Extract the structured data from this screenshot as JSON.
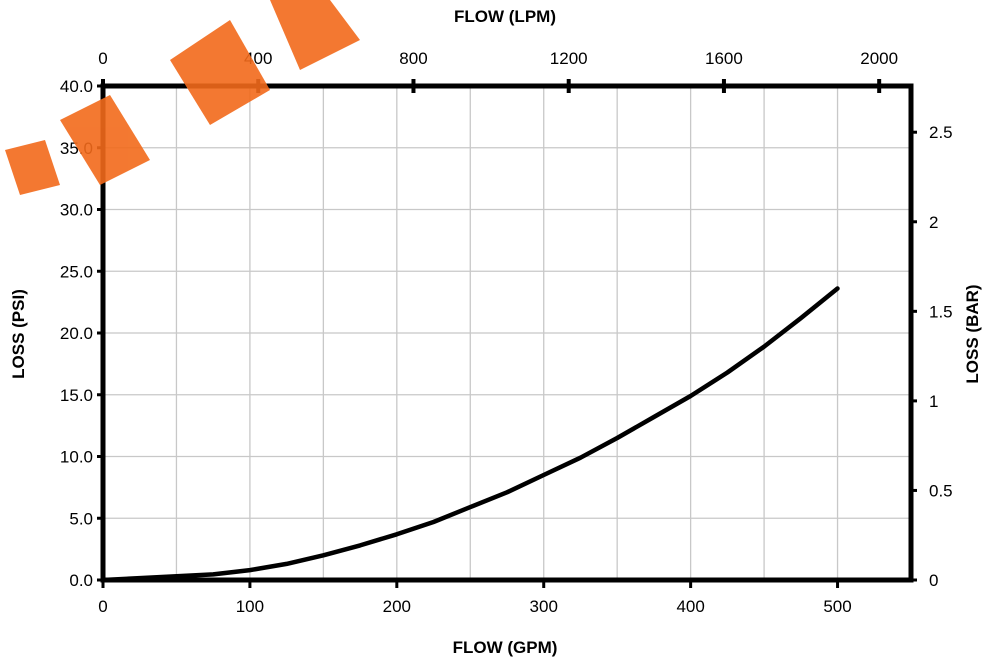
{
  "chart_data": {
    "type": "line",
    "xlabel": "FLOW (GPM)",
    "x2label": "FLOW (LPM)",
    "ylabel": "LOSS (PSI)",
    "y2label": "LOSS (BAR)",
    "xlim": [
      0,
      550
    ],
    "x2lim": [
      0,
      2082
    ],
    "ylim": [
      0,
      40
    ],
    "y2lim": [
      0,
      2.758
    ],
    "grid": true,
    "x_ticks": [
      "0",
      "100",
      "200",
      "300",
      "400",
      "500"
    ],
    "x_tick_values": [
      0,
      100,
      200,
      300,
      400,
      500
    ],
    "x2_ticks": [
      "0",
      "400",
      "800",
      "1200",
      "1600",
      "2000"
    ],
    "x2_tick_values": [
      0,
      400,
      800,
      1200,
      1600,
      2000
    ],
    "y_ticks": [
      "0.0",
      "5.0",
      "10.0",
      "15.0",
      "20.0",
      "25.0",
      "30.0",
      "35.0",
      "40.0"
    ],
    "y_tick_values": [
      0,
      5,
      10,
      15,
      20,
      25,
      30,
      35,
      40
    ],
    "y2_ticks": [
      "0",
      "0.5",
      "1",
      "1.5",
      "2",
      "2.5"
    ],
    "y2_tick_values": [
      0,
      0.5,
      1,
      1.5,
      2,
      2.5
    ],
    "series": [
      {
        "x": [
          0,
          25,
          50,
          75,
          100,
          125,
          150,
          175,
          200,
          225,
          250,
          275,
          300,
          325,
          350,
          375,
          400,
          425,
          450,
          475,
          500
        ],
        "y": [
          0,
          0.15,
          0.3,
          0.45,
          0.8,
          1.3,
          2.0,
          2.8,
          3.7,
          4.7,
          5.9,
          7.1,
          8.5,
          9.9,
          11.5,
          13.2,
          14.9,
          16.8,
          18.9,
          21.2,
          23.6
        ]
      }
    ]
  }
}
